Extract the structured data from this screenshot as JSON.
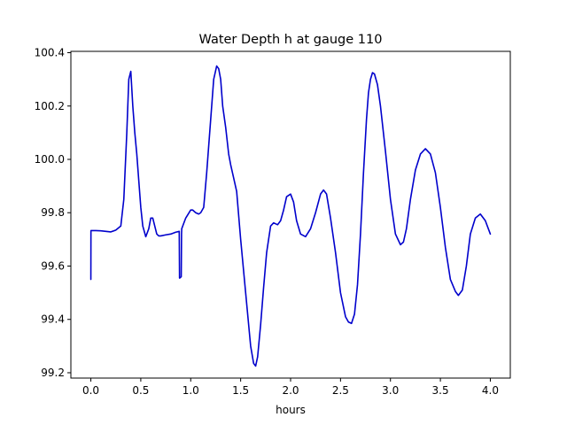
{
  "chart_data": {
    "type": "line",
    "title": "Water Depth h at gauge 110",
    "xlabel": "hours",
    "ylabel": "",
    "xlim": [
      -0.2,
      4.2
    ],
    "ylim": [
      99.18,
      100.405
    ],
    "grid": false,
    "xticks": [
      0.0,
      0.5,
      1.0,
      1.5,
      2.0,
      2.5,
      3.0,
      3.5,
      4.0
    ],
    "xtick_labels": [
      "0.0",
      "0.5",
      "1.0",
      "1.5",
      "2.0",
      "2.5",
      "3.0",
      "3.5",
      "4.0"
    ],
    "yticks": [
      99.2,
      99.4,
      99.6,
      99.8,
      100.0,
      100.2,
      100.4
    ],
    "ytick_labels": [
      "99.2",
      "99.4",
      "99.6",
      "99.8",
      "100.0",
      "100.2",
      "100.4"
    ],
    "series": [
      {
        "color": "#0000cc",
        "x": [
          0.0,
          0.001,
          0.05,
          0.1,
          0.15,
          0.2,
          0.25,
          0.3,
          0.33,
          0.36,
          0.38,
          0.4,
          0.42,
          0.44,
          0.46,
          0.48,
          0.5,
          0.52,
          0.55,
          0.58,
          0.6,
          0.62,
          0.64,
          0.66,
          0.68,
          0.7,
          0.75,
          0.8,
          0.85,
          0.885,
          0.888,
          0.89,
          0.905,
          0.908,
          0.91,
          0.95,
          1.0,
          1.02,
          1.05,
          1.08,
          1.1,
          1.13,
          1.16,
          1.2,
          1.23,
          1.26,
          1.28,
          1.3,
          1.32,
          1.35,
          1.38,
          1.4,
          1.43,
          1.46,
          1.5,
          1.55,
          1.6,
          1.63,
          1.65,
          1.67,
          1.7,
          1.73,
          1.76,
          1.8,
          1.83,
          1.87,
          1.9,
          1.93,
          1.96,
          2.0,
          2.03,
          2.06,
          2.1,
          2.15,
          2.2,
          2.25,
          2.3,
          2.33,
          2.36,
          2.4,
          2.45,
          2.5,
          2.55,
          2.58,
          2.61,
          2.64,
          2.67,
          2.7,
          2.73,
          2.76,
          2.78,
          2.8,
          2.82,
          2.84,
          2.87,
          2.9,
          2.95,
          3.0,
          3.05,
          3.1,
          3.13,
          3.16,
          3.2,
          3.25,
          3.3,
          3.35,
          3.4,
          3.45,
          3.5,
          3.55,
          3.6,
          3.65,
          3.68,
          3.72,
          3.76,
          3.8,
          3.85,
          3.9,
          3.95,
          4.0
        ],
        "y": [
          99.55,
          99.733,
          99.733,
          99.732,
          99.73,
          99.728,
          99.735,
          99.75,
          99.85,
          100.1,
          100.3,
          100.33,
          100.2,
          100.1,
          100.02,
          99.92,
          99.82,
          99.75,
          99.71,
          99.74,
          99.78,
          99.78,
          99.75,
          99.72,
          99.713,
          99.713,
          99.717,
          99.72,
          99.727,
          99.73,
          99.555,
          99.555,
          99.56,
          99.72,
          99.74,
          99.78,
          99.81,
          99.81,
          99.8,
          99.795,
          99.8,
          99.82,
          99.95,
          100.15,
          100.3,
          100.35,
          100.34,
          100.3,
          100.2,
          100.12,
          100.02,
          99.98,
          99.93,
          99.88,
          99.7,
          99.5,
          99.3,
          99.235,
          99.225,
          99.26,
          99.38,
          99.52,
          99.65,
          99.75,
          99.762,
          99.755,
          99.77,
          99.81,
          99.86,
          99.87,
          99.84,
          99.77,
          99.72,
          99.71,
          99.74,
          99.8,
          99.87,
          99.885,
          99.87,
          99.78,
          99.65,
          99.5,
          99.41,
          99.39,
          99.385,
          99.42,
          99.53,
          99.72,
          99.95,
          100.15,
          100.25,
          100.3,
          100.325,
          100.32,
          100.28,
          100.2,
          100.03,
          99.85,
          99.72,
          99.68,
          99.69,
          99.74,
          99.85,
          99.96,
          100.02,
          100.04,
          100.02,
          99.95,
          99.82,
          99.67,
          99.55,
          99.505,
          99.49,
          99.51,
          99.6,
          99.72,
          99.78,
          99.795,
          99.77,
          99.72
        ]
      }
    ]
  }
}
